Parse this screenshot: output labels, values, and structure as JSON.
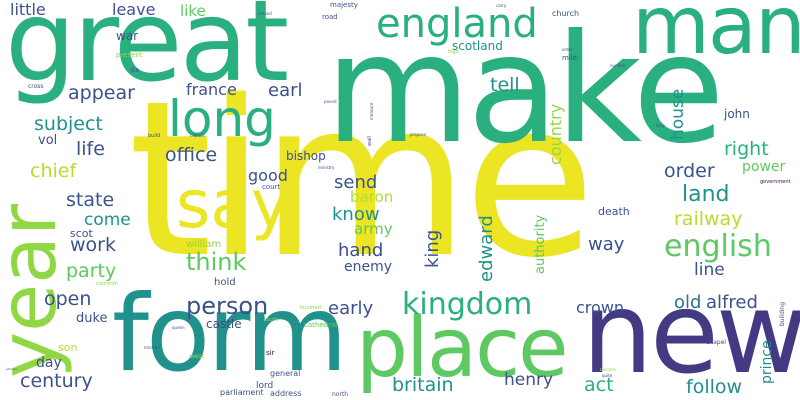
{
  "cloud": {
    "background": "#ffffff",
    "palette": {
      "yellow": "#ece523",
      "ylgreen": "#b5de2b",
      "lime": "#90d743",
      "green": "#5ec962",
      "emerald": "#2ab07f",
      "teal": "#21918c",
      "blue": "#2c728e",
      "slate": "#3b528b",
      "indigo": "#443a83",
      "purple": "#472a7a",
      "deep": "#440154"
    },
    "words": [
      {
        "text": "time",
        "color": "yellow"
      },
      {
        "text": "make",
        "color": "emerald"
      },
      {
        "text": "great",
        "color": "emerald"
      },
      {
        "text": "new",
        "color": "indigo"
      },
      {
        "text": "year",
        "color": "lime"
      },
      {
        "text": "form",
        "color": "teal"
      },
      {
        "text": "place",
        "color": "green"
      },
      {
        "text": "man",
        "color": "emerald"
      },
      {
        "text": "say",
        "color": "yellow"
      },
      {
        "text": "long",
        "color": "emerald"
      },
      {
        "text": "england",
        "color": "emerald"
      },
      {
        "text": "kingdom",
        "color": "emerald"
      },
      {
        "text": "english",
        "color": "green"
      },
      {
        "text": "person",
        "color": "slate"
      },
      {
        "text": "think",
        "color": "green"
      },
      {
        "text": "century",
        "color": "slate"
      },
      {
        "text": "office",
        "color": "slate"
      },
      {
        "text": "appear",
        "color": "slate"
      },
      {
        "text": "subject",
        "color": "teal"
      },
      {
        "text": "chief",
        "color": "ylgreen"
      },
      {
        "text": "state",
        "color": "slate"
      },
      {
        "text": "work",
        "color": "slate"
      },
      {
        "text": "party",
        "color": "green"
      },
      {
        "text": "open",
        "color": "slate"
      },
      {
        "text": "come",
        "color": "teal"
      },
      {
        "text": "life",
        "color": "slate"
      },
      {
        "text": "france",
        "color": "slate"
      },
      {
        "text": "earl",
        "color": "slate"
      },
      {
        "text": "tell",
        "color": "teal"
      },
      {
        "text": "right",
        "color": "emerald"
      },
      {
        "text": "order",
        "color": "slate"
      },
      {
        "text": "land",
        "color": "teal"
      },
      {
        "text": "railway",
        "color": "ylgreen"
      },
      {
        "text": "country",
        "color": "lime"
      },
      {
        "text": "house",
        "color": "teal"
      },
      {
        "text": "send",
        "color": "slate"
      },
      {
        "text": "know",
        "color": "teal"
      },
      {
        "text": "baron",
        "color": "ylgreen"
      },
      {
        "text": "hand",
        "color": "slate"
      },
      {
        "text": "army",
        "color": "green"
      },
      {
        "text": "enemy",
        "color": "slate"
      },
      {
        "text": "good",
        "color": "slate"
      },
      {
        "text": "king",
        "color": "slate"
      },
      {
        "text": "edward",
        "color": "teal"
      },
      {
        "text": "authority",
        "color": "green"
      },
      {
        "text": "way",
        "color": "slate"
      },
      {
        "text": "line",
        "color": "slate"
      },
      {
        "text": "power",
        "color": "green"
      },
      {
        "text": "crown",
        "color": "slate"
      },
      {
        "text": "old",
        "color": "blue"
      },
      {
        "text": "alfred",
        "color": "slate"
      },
      {
        "text": "early",
        "color": "slate"
      },
      {
        "text": "britain",
        "color": "teal"
      },
      {
        "text": "henry",
        "color": "slate"
      },
      {
        "text": "act",
        "color": "emerald"
      },
      {
        "text": "follow",
        "color": "teal"
      },
      {
        "text": "prince",
        "color": "teal"
      },
      {
        "text": "little",
        "color": "slate"
      },
      {
        "text": "leave",
        "color": "slate"
      },
      {
        "text": "like",
        "color": "green"
      },
      {
        "text": "war",
        "color": "slate"
      },
      {
        "text": "scotland",
        "color": "teal"
      },
      {
        "text": "bishop",
        "color": "slate"
      },
      {
        "text": "vol",
        "color": "slate"
      },
      {
        "text": "scot",
        "color": "slate"
      },
      {
        "text": "william",
        "color": "lime"
      },
      {
        "text": "hold",
        "color": "slate"
      },
      {
        "text": "duke",
        "color": "slate"
      },
      {
        "text": "castle",
        "color": "slate"
      },
      {
        "text": "son",
        "color": "ylgreen"
      },
      {
        "text": "day",
        "color": "slate"
      },
      {
        "text": "death",
        "color": "slate"
      },
      {
        "text": "john",
        "color": "slate"
      },
      {
        "text": "court",
        "color": "slate"
      },
      {
        "text": "cathedral",
        "color": "green"
      },
      {
        "text": "general",
        "color": "slate"
      },
      {
        "text": "lord",
        "color": "slate"
      },
      {
        "text": "address",
        "color": "slate"
      },
      {
        "text": "parliament",
        "color": "slate"
      },
      {
        "text": "north",
        "color": "slate"
      },
      {
        "text": "sir",
        "color": "deep"
      },
      {
        "text": "chapel",
        "color": "slate"
      },
      {
        "text": "building",
        "color": "slate"
      },
      {
        "text": "government",
        "color": "deep"
      },
      {
        "text": "church",
        "color": "slate"
      },
      {
        "text": "road",
        "color": "slate"
      },
      {
        "text": "majesty",
        "color": "slate"
      },
      {
        "text": "mile",
        "color": "slate"
      },
      {
        "text": "present",
        "color": "lime"
      },
      {
        "text": "die",
        "color": "slate"
      },
      {
        "text": "cross",
        "color": "slate"
      },
      {
        "text": "build",
        "color": "slate"
      },
      {
        "text": "catholic",
        "color": "slate"
      },
      {
        "text": "common",
        "color": "lime"
      },
      {
        "text": "south",
        "color": "lime"
      },
      {
        "text": "minister",
        "color": "slate"
      },
      {
        "text": "west",
        "color": "lime"
      },
      {
        "text": "queen",
        "color": "slate"
      },
      {
        "text": "carry",
        "color": "slate"
      },
      {
        "text": "measure",
        "color": "slate"
      },
      {
        "text": "wall",
        "color": "slate"
      },
      {
        "text": "propose",
        "color": "slate"
      },
      {
        "text": "pound",
        "color": "slate"
      },
      {
        "text": "ministry",
        "color": "slate"
      },
      {
        "text": "ireland",
        "color": "slate"
      },
      {
        "text": "abroad",
        "color": "slate"
      },
      {
        "text": "number",
        "color": "slate"
      },
      {
        "text": "order",
        "color": "slate"
      },
      {
        "text": "quite",
        "color": "slate"
      },
      {
        "text": "hundred",
        "color": "lime"
      },
      {
        "text": "long",
        "color": "slate"
      },
      {
        "text": "high",
        "color": "lime"
      },
      {
        "text": "become",
        "color": "lime"
      }
    ]
  }
}
